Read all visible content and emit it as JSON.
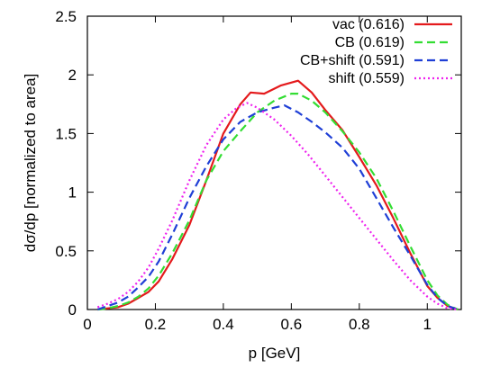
{
  "chart_data": {
    "type": "line",
    "title": "",
    "xlabel": "p [GeV]",
    "ylabel": "dσ/dp [normalized to area]",
    "xlim": [
      0,
      1.1
    ],
    "ylim": [
      0,
      2.5
    ],
    "x_ticks": [
      0,
      0.2,
      0.4,
      0.6,
      0.8,
      1
    ],
    "x_tick_labels": [
      "0",
      "0.2",
      "0.4",
      "0.6",
      "0.8",
      "1"
    ],
    "y_ticks": [
      0,
      0.5,
      1,
      1.5,
      2,
      2.5
    ],
    "y_tick_labels": [
      "0",
      "0.5",
      "1",
      "1.5",
      "2",
      "2.5"
    ],
    "grid": false,
    "legend_position": "top-right",
    "series": [
      {
        "name": "vac (0.616)",
        "color": "#e41a1c",
        "style": "solid",
        "x": [
          0.03,
          0.06,
          0.09,
          0.12,
          0.15,
          0.18,
          0.21,
          0.25,
          0.3,
          0.35,
          0.4,
          0.45,
          0.48,
          0.52,
          0.57,
          0.62,
          0.66,
          0.7,
          0.75,
          0.8,
          0.85,
          0.9,
          0.95,
          1.0,
          1.03,
          1.06,
          1.09
        ],
        "y": [
          0.0,
          0.01,
          0.02,
          0.05,
          0.1,
          0.15,
          0.24,
          0.43,
          0.72,
          1.1,
          1.5,
          1.75,
          1.85,
          1.84,
          1.91,
          1.95,
          1.85,
          1.7,
          1.53,
          1.3,
          1.06,
          0.78,
          0.48,
          0.2,
          0.1,
          0.03,
          0.0
        ]
      },
      {
        "name": "CB (0.619)",
        "color": "#33dd33",
        "style": "dashed",
        "x": [
          0.03,
          0.06,
          0.09,
          0.12,
          0.15,
          0.18,
          0.21,
          0.25,
          0.3,
          0.35,
          0.4,
          0.45,
          0.5,
          0.55,
          0.6,
          0.62,
          0.66,
          0.7,
          0.75,
          0.8,
          0.85,
          0.9,
          0.95,
          1.0,
          1.03,
          1.06,
          1.09
        ],
        "y": [
          0.0,
          0.01,
          0.03,
          0.06,
          0.11,
          0.18,
          0.29,
          0.48,
          0.76,
          1.1,
          1.35,
          1.52,
          1.68,
          1.78,
          1.84,
          1.84,
          1.78,
          1.68,
          1.52,
          1.34,
          1.12,
          0.84,
          0.54,
          0.25,
          0.12,
          0.04,
          0.0
        ]
      },
      {
        "name": "CB+shift (0.591)",
        "color": "#1f3fd6",
        "style": "dashed",
        "x": [
          0.03,
          0.06,
          0.09,
          0.12,
          0.15,
          0.18,
          0.21,
          0.25,
          0.3,
          0.35,
          0.4,
          0.45,
          0.5,
          0.55,
          0.58,
          0.62,
          0.66,
          0.7,
          0.75,
          0.8,
          0.85,
          0.9,
          0.95,
          1.0,
          1.03,
          1.06,
          1.09
        ],
        "y": [
          0.0,
          0.03,
          0.06,
          0.11,
          0.19,
          0.28,
          0.41,
          0.64,
          0.95,
          1.22,
          1.45,
          1.6,
          1.68,
          1.72,
          1.74,
          1.68,
          1.6,
          1.51,
          1.38,
          1.2,
          0.95,
          0.7,
          0.46,
          0.21,
          0.1,
          0.03,
          0.0
        ]
      },
      {
        "name": "shift (0.559)",
        "color": "#ee22ee",
        "style": "dotted",
        "x": [
          0.03,
          0.06,
          0.09,
          0.12,
          0.15,
          0.18,
          0.21,
          0.25,
          0.3,
          0.35,
          0.4,
          0.44,
          0.47,
          0.5,
          0.55,
          0.6,
          0.65,
          0.7,
          0.75,
          0.8,
          0.85,
          0.9,
          0.95,
          1.0,
          1.03,
          1.06,
          1.09
        ],
        "y": [
          0.02,
          0.05,
          0.09,
          0.15,
          0.24,
          0.36,
          0.52,
          0.76,
          1.1,
          1.4,
          1.62,
          1.72,
          1.76,
          1.72,
          1.62,
          1.48,
          1.32,
          1.14,
          0.96,
          0.78,
          0.6,
          0.42,
          0.25,
          0.11,
          0.05,
          0.01,
          0.0
        ]
      }
    ]
  }
}
